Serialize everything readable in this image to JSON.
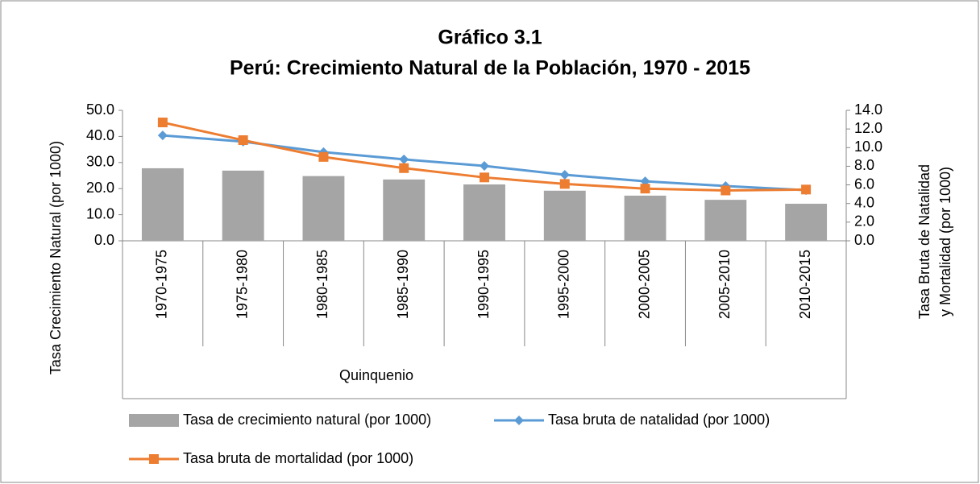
{
  "chart_data": {
    "type": "combo",
    "title": [
      "Gráfico 3.1",
      "Perú: Crecimiento Natural de la Población, 1970 - 2015"
    ],
    "x_label": "Quinquenio",
    "y_label": "Tasa Crecimiento Natural (por 1000)",
    "y2_label": [
      "Tasa Bruta de Natalidad",
      "y Mortalidad (por 1000)"
    ],
    "categories": [
      "1970-1975",
      "1975-1980",
      "1980-1985",
      "1985-1990",
      "1990-1995",
      "1995-2000",
      "2000-2005",
      "2005-2010",
      "2010-2015"
    ],
    "series": [
      {
        "name": "Tasa de crecimiento natural (por 1000)",
        "type": "bar",
        "color": "#a5a5a5",
        "values": [
          27.8,
          26.9,
          24.8,
          23.5,
          21.6,
          19.2,
          17.3,
          15.7,
          14.2
        ]
      },
      {
        "name": "Tasa bruta de natalidad (por 1000)",
        "type": "line",
        "marker": "diamond",
        "color": "#5b9bd5",
        "values": [
          40.4,
          38.0,
          34.0,
          31.2,
          28.7,
          25.3,
          22.8,
          21.0,
          19.4
        ]
      },
      {
        "name": "Tasa bruta de mortalidad (por 1000)",
        "type": "line",
        "marker": "square",
        "axis": "y2",
        "color": "#ed7d31",
        "values": [
          12.7,
          10.8,
          9.0,
          7.8,
          6.8,
          6.1,
          5.6,
          5.4,
          5.5
        ]
      }
    ],
    "ylim": [
      0,
      50
    ],
    "yticks": [
      {
        "value": 0,
        "label": "0.0"
      },
      {
        "value": 10,
        "label": "10.0"
      },
      {
        "value": 20,
        "label": "20.0"
      },
      {
        "value": 30,
        "label": "30.0"
      },
      {
        "value": 40,
        "label": "40.0"
      },
      {
        "value": 50,
        "label": "50.0"
      }
    ],
    "y2lim": [
      0,
      14
    ],
    "y2ticks": [
      {
        "value": 0,
        "label": "0.0"
      },
      {
        "value": 2,
        "label": "2.0"
      },
      {
        "value": 4,
        "label": "4.0"
      },
      {
        "value": 6,
        "label": "6.0"
      },
      {
        "value": 8,
        "label": "8.0"
      },
      {
        "value": 10,
        "label": "10.0"
      },
      {
        "value": 12,
        "label": "12.0"
      },
      {
        "value": 14,
        "label": "14.0"
      }
    ],
    "legend": "bottom"
  }
}
